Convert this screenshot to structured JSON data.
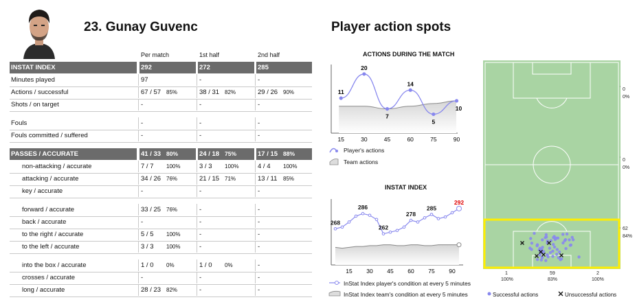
{
  "player": {
    "title": "23. Gunay Guvenc"
  },
  "section_title": "Player action spots",
  "columns": [
    "Per match",
    "1st half",
    "2nd half"
  ],
  "rows": [
    {
      "label": "INSTAT INDEX",
      "header": true,
      "v": [
        "292",
        "",
        "272",
        "",
        "285",
        ""
      ]
    },
    {
      "label": "Minutes played",
      "v": [
        "97",
        "",
        "-",
        "",
        "-",
        ""
      ]
    },
    {
      "label": "Actions / successful",
      "v": [
        "67 / 57",
        "85%",
        "38 / 31",
        "82%",
        "29 / 26",
        "90%"
      ]
    },
    {
      "label": "Shots / on target",
      "v": [
        "-",
        "",
        "-",
        "",
        "-",
        ""
      ]
    },
    {
      "label": "Fouls",
      "v": [
        "-",
        "",
        "-",
        "",
        "-",
        ""
      ],
      "gap": true
    },
    {
      "label": "Fouls committed / suffered",
      "v": [
        "-",
        "",
        "-",
        "",
        "-",
        ""
      ]
    },
    {
      "label": "PASSES / ACCURATE",
      "header": true,
      "gap": true,
      "v": [
        "41 / 33",
        "80%",
        "24 / 18",
        "75%",
        "17 / 15",
        "88%"
      ]
    },
    {
      "label": "non-attacking / accurate",
      "indent": true,
      "v": [
        "7 / 7",
        "100%",
        "3 / 3",
        "100%",
        "4 / 4",
        "100%"
      ]
    },
    {
      "label": "attacking / accurate",
      "indent": true,
      "v": [
        "34 / 26",
        "76%",
        "21 / 15",
        "71%",
        "13 / 11",
        "85%"
      ]
    },
    {
      "label": "key / accurate",
      "indent": true,
      "v": [
        "-",
        "",
        "-",
        "",
        "-",
        ""
      ]
    },
    {
      "label": "forward / accurate",
      "indent": true,
      "gap": true,
      "v": [
        "33 / 25",
        "76%",
        "-",
        "",
        "-",
        ""
      ]
    },
    {
      "label": "back / accurate",
      "indent": true,
      "v": [
        "-",
        "",
        "-",
        "",
        "-",
        ""
      ]
    },
    {
      "label": "to the right / accurate",
      "indent": true,
      "v": [
        "5 / 5",
        "100%",
        "-",
        "",
        "-",
        ""
      ]
    },
    {
      "label": "to the left / accurate",
      "indent": true,
      "v": [
        "3 / 3",
        "100%",
        "-",
        "",
        "-",
        ""
      ]
    },
    {
      "label": "into the box / accurate",
      "indent": true,
      "gap": true,
      "v": [
        "1 / 0",
        "0%",
        "1 / 0",
        "0%",
        "-",
        ""
      ]
    },
    {
      "label": "crosses / accurate",
      "indent": true,
      "v": [
        "-",
        "",
        "-",
        "",
        "-",
        ""
      ]
    },
    {
      "label": "long / accurate",
      "indent": true,
      "v": [
        "28 / 23",
        "82%",
        "-",
        "",
        "-",
        ""
      ]
    }
  ],
  "chart_data": [
    {
      "type": "area",
      "title": "ACTIONS DURING THE MATCH",
      "x": [
        15,
        30,
        45,
        60,
        75,
        90
      ],
      "xticks": [
        "15",
        "30",
        "45",
        "60",
        "75",
        "90"
      ],
      "series": [
        {
          "name": "Player's actions",
          "values": [
            11,
            20,
            7,
            14,
            5,
            10
          ]
        }
      ],
      "team_actions": [
        8,
        8,
        7,
        8,
        9,
        10
      ],
      "legend": [
        "Player's actions",
        "Team actions"
      ]
    },
    {
      "type": "line",
      "title": "INSTAT INDEX",
      "x": [
        5,
        10,
        15,
        20,
        25,
        30,
        35,
        40,
        45,
        50,
        55,
        60,
        65,
        70,
        75,
        80,
        85,
        90,
        95
      ],
      "xticks": [
        "15",
        "30",
        "45",
        "60",
        "75",
        "90"
      ],
      "series": [
        {
          "name": "InStat Index player's condition at every 5 minutes",
          "values": [
            268,
            270,
            276,
            283,
            286,
            284,
            279,
            262,
            264,
            266,
            270,
            278,
            276,
            281,
            285,
            280,
            282,
            287,
            292
          ]
        }
      ],
      "team_condition": [
        246,
        245,
        246,
        247,
        247,
        248,
        248,
        249,
        249,
        248,
        248,
        249,
        249,
        248,
        248,
        249,
        249,
        249,
        249
      ],
      "point_labels": [
        {
          "x": 5,
          "label": "268"
        },
        {
          "x": 25,
          "label": "286"
        },
        {
          "x": 40,
          "label": "262"
        },
        {
          "x": 60,
          "label": "278"
        },
        {
          "x": 75,
          "label": "285"
        },
        {
          "x": 95,
          "label": "292",
          "highlight": true
        }
      ],
      "legend": [
        "InStat Index player's condition at every 5 minutes",
        "InStat Index team's condition at every 5 minutes"
      ]
    }
  ],
  "pitch": {
    "zones": [
      {
        "count": "0",
        "pct": "0%"
      },
      {
        "count": "0",
        "pct": "0%"
      },
      {
        "count": "62",
        "pct": "84%"
      }
    ],
    "bottom": [
      {
        "count": "1",
        "pct": "100%"
      },
      {
        "count": "59",
        "pct": "83%"
      },
      {
        "count": "2",
        "pct": "100%"
      }
    ],
    "legend": [
      "Successful actions",
      "Unsuccessful actions"
    ],
    "colors": {
      "grass": "#a9d4a3",
      "highlight": "#ffee00",
      "success": "#8888ee"
    }
  }
}
